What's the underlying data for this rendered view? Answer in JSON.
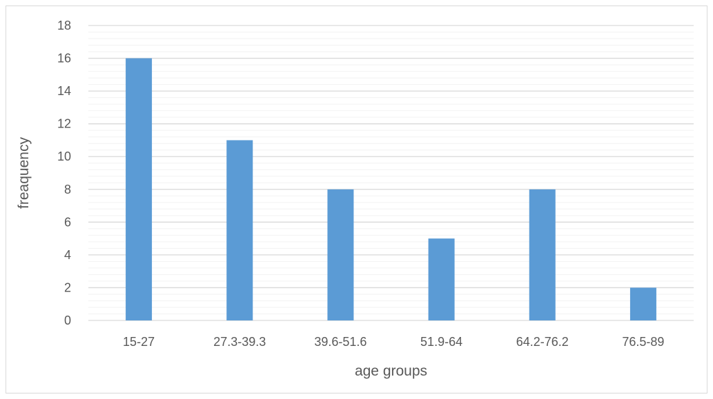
{
  "chart_data": {
    "type": "bar",
    "title": "",
    "xlabel": "age groups",
    "ylabel": "freaquency",
    "categories": [
      "15-27",
      "27.3-39.3",
      "39.6-51.6",
      "51.9-64",
      "64.2-76.2",
      "76.5-89"
    ],
    "values": [
      16,
      11,
      8,
      5,
      8,
      2
    ],
    "ylim": [
      0,
      18
    ],
    "y_ticks": [
      0,
      2,
      4,
      6,
      8,
      10,
      12,
      14,
      16,
      18
    ],
    "grid": true,
    "minor_grid": true,
    "legend": "none",
    "bar_color": "#5b9bd5",
    "grid_color": "#d9d9d9",
    "minor_grid_color": "#f2f2f2",
    "text_color": "#595959"
  }
}
